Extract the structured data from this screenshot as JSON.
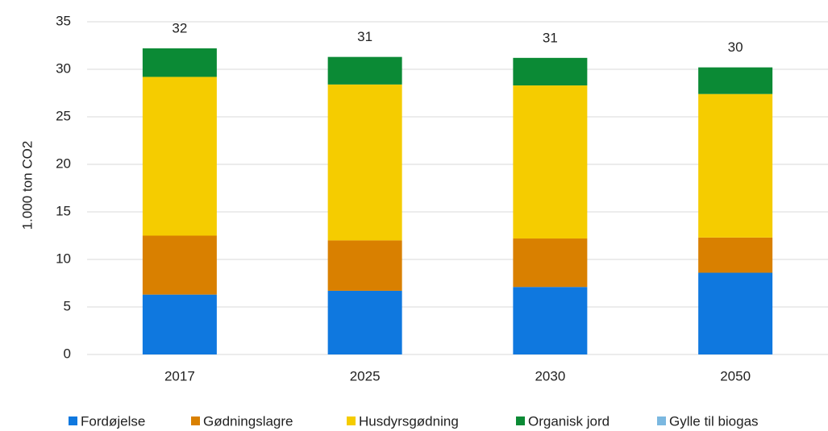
{
  "chart_data": {
    "type": "stacked_bar",
    "y_label": "1.000 ton CO2",
    "categories": [
      "2017",
      "2025",
      "2030",
      "2050"
    ],
    "series": [
      {
        "name": "Fordøjelse",
        "color": "#0f78df",
        "values": [
          6.3,
          6.7,
          7.1,
          8.6
        ]
      },
      {
        "name": "Gødningslagre",
        "color": "#d98000",
        "values": [
          6.2,
          5.3,
          5.1,
          3.7
        ]
      },
      {
        "name": "Husdyrsgødning",
        "color": "#f5cc00",
        "values": [
          16.7,
          16.4,
          16.1,
          15.1
        ]
      },
      {
        "name": "Organisk jord",
        "color": "#0b8a35",
        "values": [
          3.0,
          2.9,
          2.9,
          2.8
        ]
      },
      {
        "name": "Gylle til biogas",
        "color": "#7bb8e0",
        "values": [
          0,
          0,
          0,
          0
        ]
      }
    ],
    "total_labels": [
      32,
      31,
      31,
      30
    ],
    "ylim": [
      0,
      35
    ],
    "yticks": [
      0,
      5,
      10,
      15,
      20,
      25,
      30,
      35
    ],
    "grid": true,
    "legend": "bottom"
  }
}
